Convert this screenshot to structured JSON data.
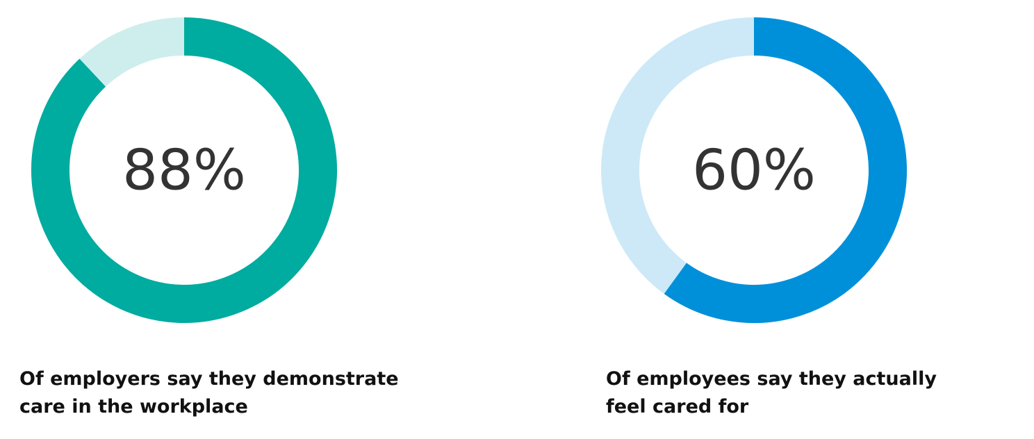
{
  "chart_data": [
    {
      "type": "donut",
      "values": [
        88
      ],
      "value_labels": [
        "88%"
      ],
      "color": "#00ab9f",
      "track_color": "#cdeeec",
      "caption": "Of employers say they demonstrate care in the workplace"
    },
    {
      "type": "donut",
      "values": [
        60
      ],
      "value_labels": [
        "60%"
      ],
      "color": "#0090da",
      "track_color": "#cde9f7",
      "caption": "Of employees say they actually feel cared for"
    }
  ]
}
